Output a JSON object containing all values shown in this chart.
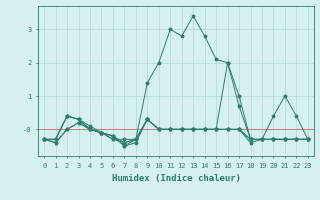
{
  "xlabel": "Humidex (Indice chaleur)",
  "x_values": [
    0,
    1,
    2,
    3,
    4,
    5,
    6,
    7,
    8,
    9,
    10,
    11,
    12,
    13,
    14,
    15,
    16,
    17,
    18,
    19,
    20,
    21,
    22,
    23
  ],
  "series": [
    [
      -0.3,
      -0.3,
      0.4,
      0.3,
      0.1,
      -0.1,
      -0.3,
      -0.4,
      -0.3,
      1.4,
      2.0,
      3.0,
      2.8,
      3.4,
      2.8,
      2.1,
      2.0,
      0.7,
      -0.3,
      -0.3,
      -0.3,
      -0.3,
      -0.3,
      -0.3
    ],
    [
      -0.3,
      -0.3,
      0.4,
      0.3,
      0.0,
      -0.1,
      -0.2,
      -0.5,
      -0.4,
      0.3,
      0.0,
      0.0,
      0.0,
      0.0,
      0.0,
      0.0,
      0.0,
      0.0,
      -0.3,
      -0.3,
      -0.3,
      -0.3,
      -0.3,
      -0.3
    ],
    [
      -0.3,
      -0.3,
      0.4,
      0.3,
      0.0,
      -0.1,
      -0.2,
      -0.5,
      -0.3,
      0.3,
      0.0,
      0.0,
      0.0,
      0.0,
      0.0,
      0.0,
      0.0,
      0.0,
      -0.4,
      -0.3,
      -0.3,
      -0.3,
      -0.3,
      -0.3
    ],
    [
      -0.3,
      -0.4,
      0.0,
      0.2,
      0.0,
      -0.1,
      -0.2,
      -0.4,
      -0.3,
      0.3,
      0.0,
      0.0,
      0.0,
      0.0,
      0.0,
      0.0,
      2.0,
      1.0,
      -0.3,
      -0.3,
      0.4,
      1.0,
      0.4,
      -0.3
    ],
    [
      -0.3,
      -0.4,
      0.0,
      0.2,
      0.0,
      -0.1,
      -0.3,
      -0.3,
      -0.3,
      0.3,
      0.0,
      0.0,
      0.0,
      0.0,
      0.0,
      0.0,
      0.0,
      0.0,
      -0.3,
      -0.3,
      -0.3,
      -0.3,
      -0.3,
      -0.3
    ]
  ],
  "line_color": "#2e7d6e",
  "marker": "*",
  "bg_color": "#d6f0ef",
  "grid_color": "#b0d8d5",
  "ylim": [
    -0.8,
    3.7
  ],
  "yticks": [
    0,
    1,
    2,
    3
  ],
  "ytick_labels": [
    "-0",
    "1",
    "2",
    "3"
  ],
  "red_line_y": 0,
  "red_line_color": "#cc4444"
}
